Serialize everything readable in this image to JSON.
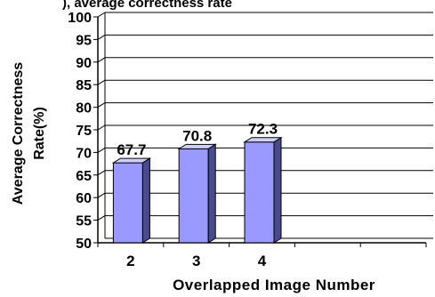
{
  "chart_data": {
    "type": "bar",
    "title": "",
    "top_text": "), average correctness rate",
    "xlabel": "Overlapped Image Number",
    "ylabel_lines": [
      "Average Correctness",
      "Rate(%)"
    ],
    "categories": [
      "2",
      "3",
      "4"
    ],
    "values": [
      67.7,
      70.8,
      72.3
    ],
    "data_labels": [
      "67.7",
      "70.8",
      "72.3"
    ],
    "ylim": [
      50,
      100
    ],
    "yticks": [
      "100",
      "95",
      "90",
      "85",
      "80",
      "75",
      "70",
      "65",
      "60",
      "55",
      "50"
    ],
    "grid": true,
    "legend": "none",
    "style": "3d",
    "colors": {
      "bar_front": "#9999ff",
      "bar_side": "#4a4a8c",
      "bar_top": "#cfcfff",
      "outline": "#000000",
      "grid": "#000000"
    }
  }
}
